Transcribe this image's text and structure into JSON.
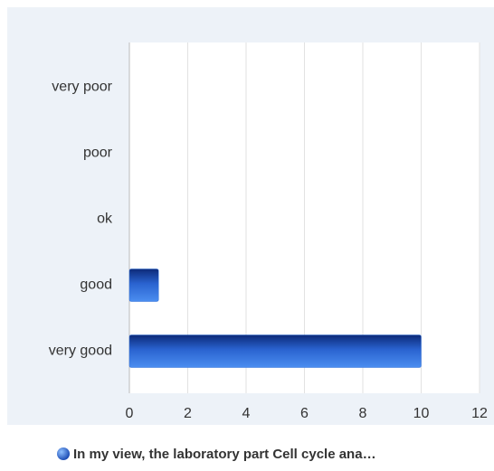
{
  "chart_data": {
    "type": "bar",
    "orientation": "horizontal",
    "categories": [
      "very poor",
      "poor",
      "ok",
      "good",
      "very good"
    ],
    "series": [
      {
        "name": "In my view, the laboratory part Cell cycle ana…",
        "color": "#2f6fd8",
        "values": [
          0,
          0,
          0,
          1,
          10
        ]
      }
    ],
    "xlim": [
      0,
      12
    ],
    "xticks": [
      0,
      2,
      4,
      6,
      8,
      10,
      12
    ],
    "grid": true,
    "legend": "bottom"
  }
}
